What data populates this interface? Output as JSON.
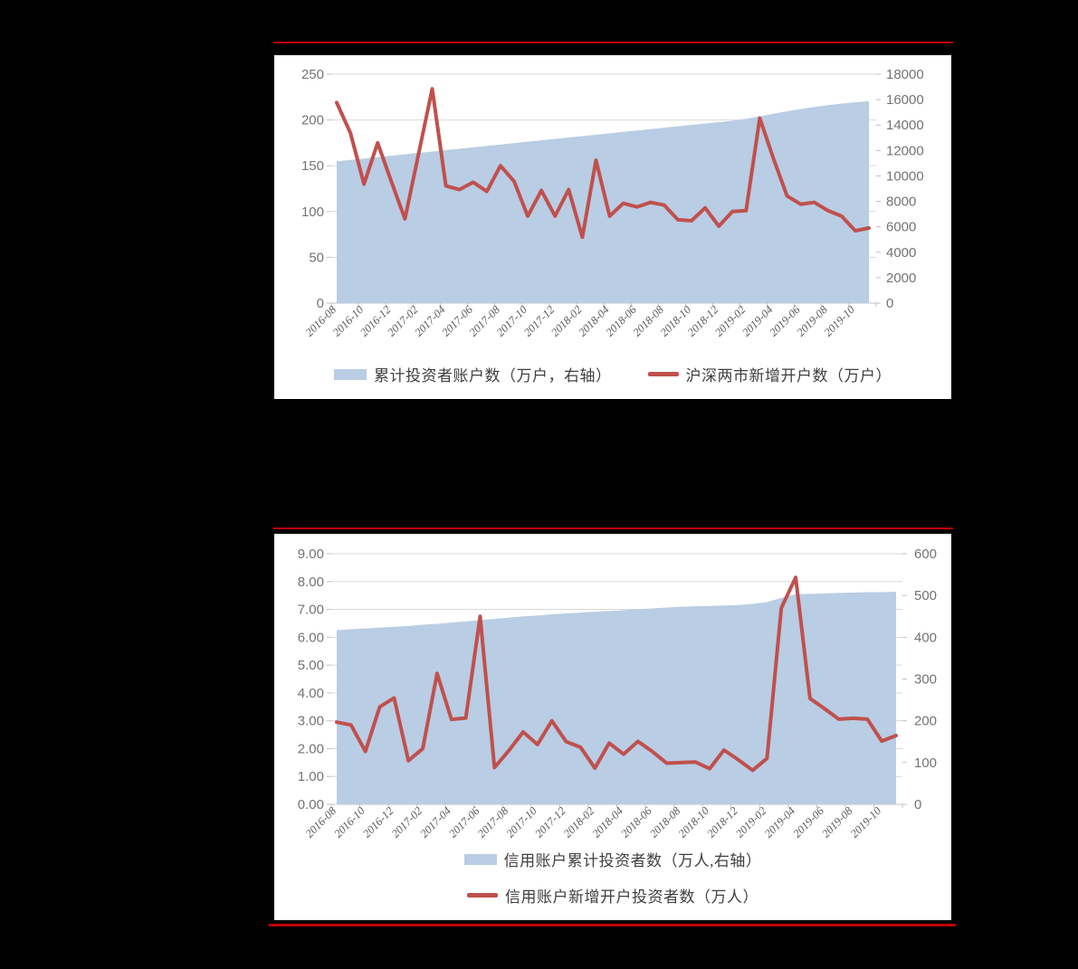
{
  "page": {
    "background_color": "#000000",
    "panel_color": "#FFFFFF",
    "rule_color": "#C00000"
  },
  "style": {
    "grid_color": "#D9D9D9",
    "axis_line_color": "#C6C6C6",
    "tick_color": "#BFBFBF",
    "axis_text_color": "#737373",
    "x_label_color": "#595959",
    "legend_text_color": "#3F3F3F"
  },
  "chart_data": [
    {
      "type": "line",
      "title": "",
      "xlabel": "",
      "ylabel": "",
      "grid": true,
      "legend_position": "bottom",
      "categories": [
        "2016-08",
        "2016-09",
        "2016-10",
        "2016-11",
        "2016-12",
        "2017-01",
        "2017-02",
        "2017-03",
        "2017-04",
        "2017-05",
        "2017-06",
        "2017-07",
        "2017-08",
        "2017-09",
        "2017-10",
        "2017-11",
        "2017-12",
        "2018-01",
        "2018-02",
        "2018-03",
        "2018-04",
        "2018-05",
        "2018-06",
        "2018-07",
        "2018-08",
        "2018-09",
        "2018-10",
        "2018-11",
        "2018-12",
        "2019-01",
        "2019-02",
        "2019-03",
        "2019-04",
        "2019-05",
        "2019-06",
        "2019-07",
        "2019-08",
        "2019-09",
        "2019-10",
        "2019-11"
      ],
      "x_tick_labels": [
        "2016-08",
        "2016-10",
        "2016-12",
        "2017-02",
        "2017-04",
        "2017-06",
        "2017-08",
        "2017-10",
        "2017-12",
        "2018-02",
        "2018-04",
        "2018-06",
        "2018-08",
        "2018-10",
        "2018-12",
        "2019-02",
        "2019-04",
        "2019-06",
        "2019-08",
        "2019-10"
      ],
      "axes": {
        "left": {
          "min": 0,
          "max": 250,
          "tick_labels": [
            "0",
            "50",
            "100",
            "150",
            "200",
            "250"
          ]
        },
        "right": {
          "min": 0,
          "max": 18000,
          "tick_labels": [
            "0",
            "2000",
            "4000",
            "6000",
            "8000",
            "10000",
            "12000",
            "14000",
            "16000",
            "18000"
          ]
        }
      },
      "series": [
        {
          "name": "累计投资者账户数（万户，右轴）",
          "kind": "area",
          "axis": "right",
          "color": "#B9CDE4",
          "values": [
            11150,
            11260,
            11370,
            11480,
            11590,
            11700,
            11810,
            11920,
            12030,
            12140,
            12250,
            12360,
            12470,
            12580,
            12690,
            12800,
            12910,
            13020,
            13130,
            13240,
            13350,
            13460,
            13570,
            13680,
            13790,
            13900,
            14010,
            14120,
            14230,
            14340,
            14500,
            14680,
            14890,
            15080,
            15260,
            15420,
            15560,
            15690,
            15790,
            15880
          ]
        },
        {
          "name": "沪深两市新增开户数（万户）",
          "kind": "line",
          "axis": "left",
          "color": "#C0504D",
          "values": [
            219,
            186,
            130,
            175,
            133,
            92,
            163,
            234,
            128,
            124,
            132,
            122,
            150,
            133,
            95,
            123,
            95,
            124,
            72,
            156,
            95,
            109,
            105,
            110,
            107,
            91,
            90,
            104,
            84,
            100,
            101,
            202,
            158,
            117,
            108,
            110,
            101,
            95,
            79,
            82
          ]
        }
      ]
    },
    {
      "type": "line",
      "title": "",
      "xlabel": "",
      "ylabel": "",
      "grid": true,
      "legend_position": "bottom",
      "categories": [
        "2016-08",
        "2016-09",
        "2016-10",
        "2016-11",
        "2016-12",
        "2017-01",
        "2017-02",
        "2017-03",
        "2017-04",
        "2017-05",
        "2017-06",
        "2017-07",
        "2017-08",
        "2017-09",
        "2017-10",
        "2017-11",
        "2017-12",
        "2018-01",
        "2018-02",
        "2018-03",
        "2018-04",
        "2018-05",
        "2018-06",
        "2018-07",
        "2018-08",
        "2018-09",
        "2018-10",
        "2018-11",
        "2018-12",
        "2019-01",
        "2019-02",
        "2019-03",
        "2019-04",
        "2019-05",
        "2019-06",
        "2019-07",
        "2019-08",
        "2019-09",
        "2019-10",
        "2019-11"
      ],
      "x_tick_labels": [
        "2016-08",
        "2016-10",
        "2016-12",
        "2017-02",
        "2017-04",
        "2017-06",
        "2017-08",
        "2017-10",
        "2017-12",
        "2018-02",
        "2018-04",
        "2018-06",
        "2018-08",
        "2018-10",
        "2018-12",
        "2019-02",
        "2019-04",
        "2019-06",
        "2019-08",
        "2019-10"
      ],
      "axes": {
        "left": {
          "min": 0,
          "max": 9,
          "tick_labels": [
            "0.00",
            "1.00",
            "2.00",
            "3.00",
            "4.00",
            "5.00",
            "6.00",
            "7.00",
            "8.00",
            "9.00"
          ]
        },
        "right": {
          "min": 0,
          "max": 600,
          "tick_labels": [
            "0",
            "100",
            "200",
            "300",
            "400",
            "500",
            "600"
          ]
        }
      },
      "series": [
        {
          "name": "信用账户累计投资者数（万人,右轴）",
          "kind": "area",
          "axis": "right",
          "color": "#B9CDE4",
          "values": [
            417,
            419,
            421,
            423,
            425,
            427,
            430,
            432,
            435,
            438,
            441,
            444,
            447,
            450,
            452,
            455,
            457,
            459,
            461,
            463,
            465,
            467,
            469,
            471,
            473,
            474,
            475,
            476,
            477,
            480,
            484,
            494,
            503,
            504,
            505,
            506,
            507,
            508,
            508,
            509
          ]
        },
        {
          "name": "信用账户新增开户投资者数（万人）",
          "kind": "line",
          "axis": "left",
          "color": "#C0504D",
          "values": [
            2.95,
            2.85,
            1.9,
            3.5,
            3.82,
            1.57,
            2.0,
            4.7,
            3.05,
            3.1,
            6.75,
            1.32,
            1.93,
            2.6,
            2.15,
            3.0,
            2.25,
            2.05,
            1.3,
            2.2,
            1.8,
            2.26,
            1.9,
            1.48,
            1.5,
            1.52,
            1.28,
            1.95,
            1.6,
            1.22,
            1.65,
            7.05,
            8.15,
            3.8,
            3.44,
            3.06,
            3.09,
            3.06,
            2.27,
            2.47
          ]
        }
      ]
    }
  ]
}
